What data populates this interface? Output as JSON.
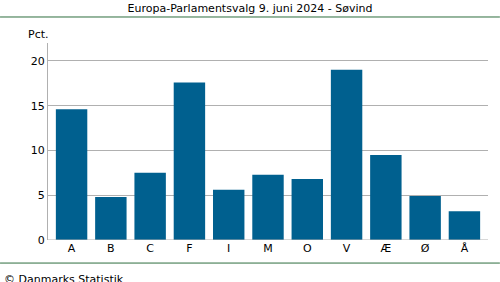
{
  "chart_data": {
    "type": "bar",
    "title": "Europa-Parlamentsvalg 9. juni 2024 - Søvind",
    "y_label": "Pct.",
    "source": "© Danmarks Statistik",
    "categories": [
      "A",
      "B",
      "C",
      "F",
      "I",
      "M",
      "O",
      "V",
      "Æ",
      "Ø",
      "Å"
    ],
    "values": [
      14.6,
      4.8,
      7.5,
      17.6,
      5.6,
      7.3,
      6.8,
      19.0,
      9.5,
      4.9,
      3.2
    ],
    "color": "#00608f",
    "ylim": [
      0,
      22
    ],
    "yticks": [
      0,
      5,
      10,
      15,
      20
    ],
    "grid": true
  }
}
